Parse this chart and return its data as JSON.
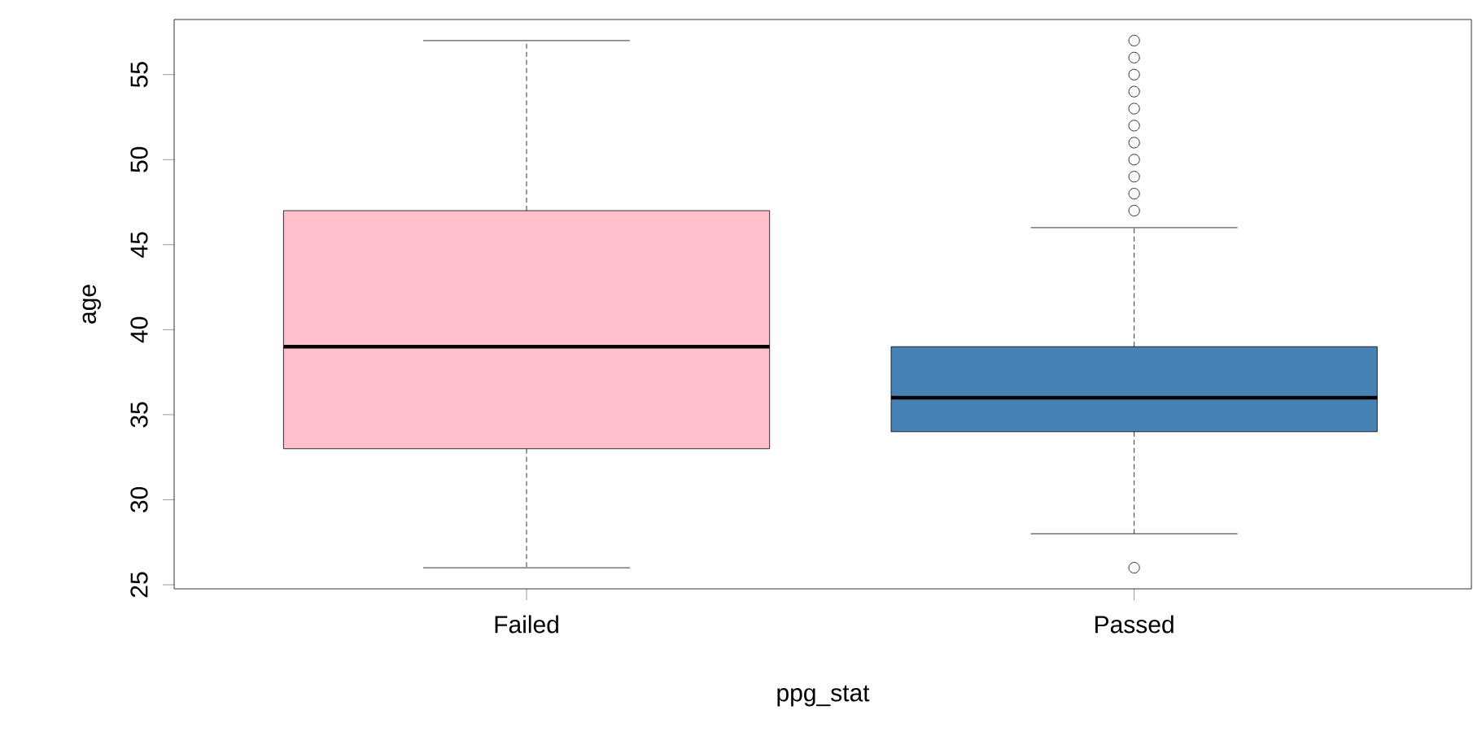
{
  "chart_data": {
    "type": "box",
    "xlabel": "ppg_stat",
    "ylabel": "age",
    "categories": [
      "Failed",
      "Passed"
    ],
    "colors": [
      "#ffc0cb",
      "#4682b4"
    ],
    "boxes": [
      {
        "low": 26,
        "q1": 33,
        "median": 39,
        "q3": 47,
        "high": 57
      },
      {
        "low": 28,
        "q1": 34,
        "median": 36,
        "q3": 39,
        "high": 46,
        "outliers": [
          26,
          47,
          48,
          49,
          50,
          51,
          52,
          53,
          54,
          55,
          56,
          57
        ]
      }
    ],
    "ylim": [
      24.76,
      58.24
    ],
    "yticks": [
      25,
      30,
      35,
      40,
      45,
      50,
      55
    ]
  }
}
